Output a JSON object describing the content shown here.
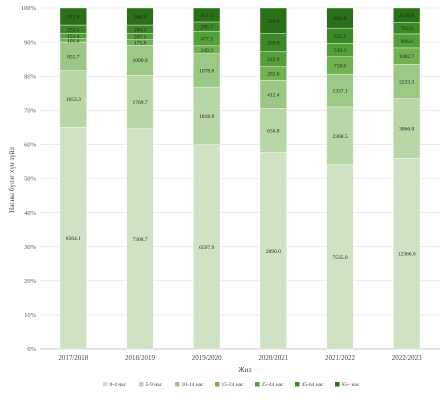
{
  "chart_data": {
    "type": "bar",
    "stacked": "percent",
    "title": "",
    "xlabel": "Жил",
    "ylabel": "Насны бүлэг хүн зүйл",
    "ylim": [
      0,
      100
    ],
    "yticks": [
      "0%",
      "10%",
      "20%",
      "30%",
      "40%",
      "50%",
      "60%",
      "70%",
      "80%",
      "90%",
      "100%"
    ],
    "grid": true,
    "legend_position": "bottom",
    "categories": [
      "2017/2018",
      "2018/2019",
      "2019/2020",
      "2020/2021",
      "2021/2022",
      "2022/2023"
    ],
    "colors": [
      "#cfe3c4",
      "#b8d6a6",
      "#9bc884",
      "#72b252",
      "#54a038",
      "#3b8a27",
      "#2a7018"
    ],
    "series": [
      {
        "name": "0-4 нас",
        "labels": [
          "6564.1",
          "7308.7",
          "6597.9",
          "2890.0",
          "7535.0",
          "12366.0"
        ],
        "values": [
          65.0,
          64.6,
          59.9,
          57.6,
          54.0,
          55.9
        ]
      },
      {
        "name": "5-9 нас",
        "labels": [
          "1653.3",
          "1769.7",
          "1818.8",
          "656.8",
          "2368.5",
          "3866.0"
        ],
        "values": [
          16.6,
          15.7,
          16.9,
          13.0,
          17.0,
          17.5
        ]
      },
      {
        "name": "10-14 нас",
        "labels": [
          "855.7",
          "1000.9",
          "1078.8",
          "412.4",
          "1337.1",
          "2233.3"
        ],
        "values": [
          8.4,
          8.8,
          9.8,
          8.2,
          9.6,
          10.1
        ]
      },
      {
        "name": "15-24 нас",
        "labels": [
          "101.6",
          "175.8",
          "249.3",
          "202.6",
          "718.0",
          "1062.7"
        ],
        "values": [
          1.0,
          1.6,
          2.3,
          4.0,
          5.1,
          4.8
        ]
      },
      {
        "name": "25-44 нас",
        "labels": [
          "151.4",
          "207.1",
          "477.3",
          "222.9",
          "539.3",
          "906.6"
        ],
        "values": [
          1.5,
          1.8,
          4.3,
          4.4,
          3.9,
          4.1
        ]
      },
      {
        "name": "45-64 нас",
        "labels": [
          "253.1",
          "284.3",
          "295.7",
          "269.8",
          "625.5",
          "762.6"
        ],
        "values": [
          2.5,
          2.5,
          2.7,
          5.3,
          4.5,
          3.4
        ]
      },
      {
        "name": "65+ нас",
        "labels": [
          "511.6",
          "568.8",
          "417.3",
          "359.6",
          "801.8",
          "1156.0"
        ],
        "values": [
          5.0,
          5.0,
          4.1,
          7.5,
          5.9,
          4.2
        ]
      }
    ]
  }
}
